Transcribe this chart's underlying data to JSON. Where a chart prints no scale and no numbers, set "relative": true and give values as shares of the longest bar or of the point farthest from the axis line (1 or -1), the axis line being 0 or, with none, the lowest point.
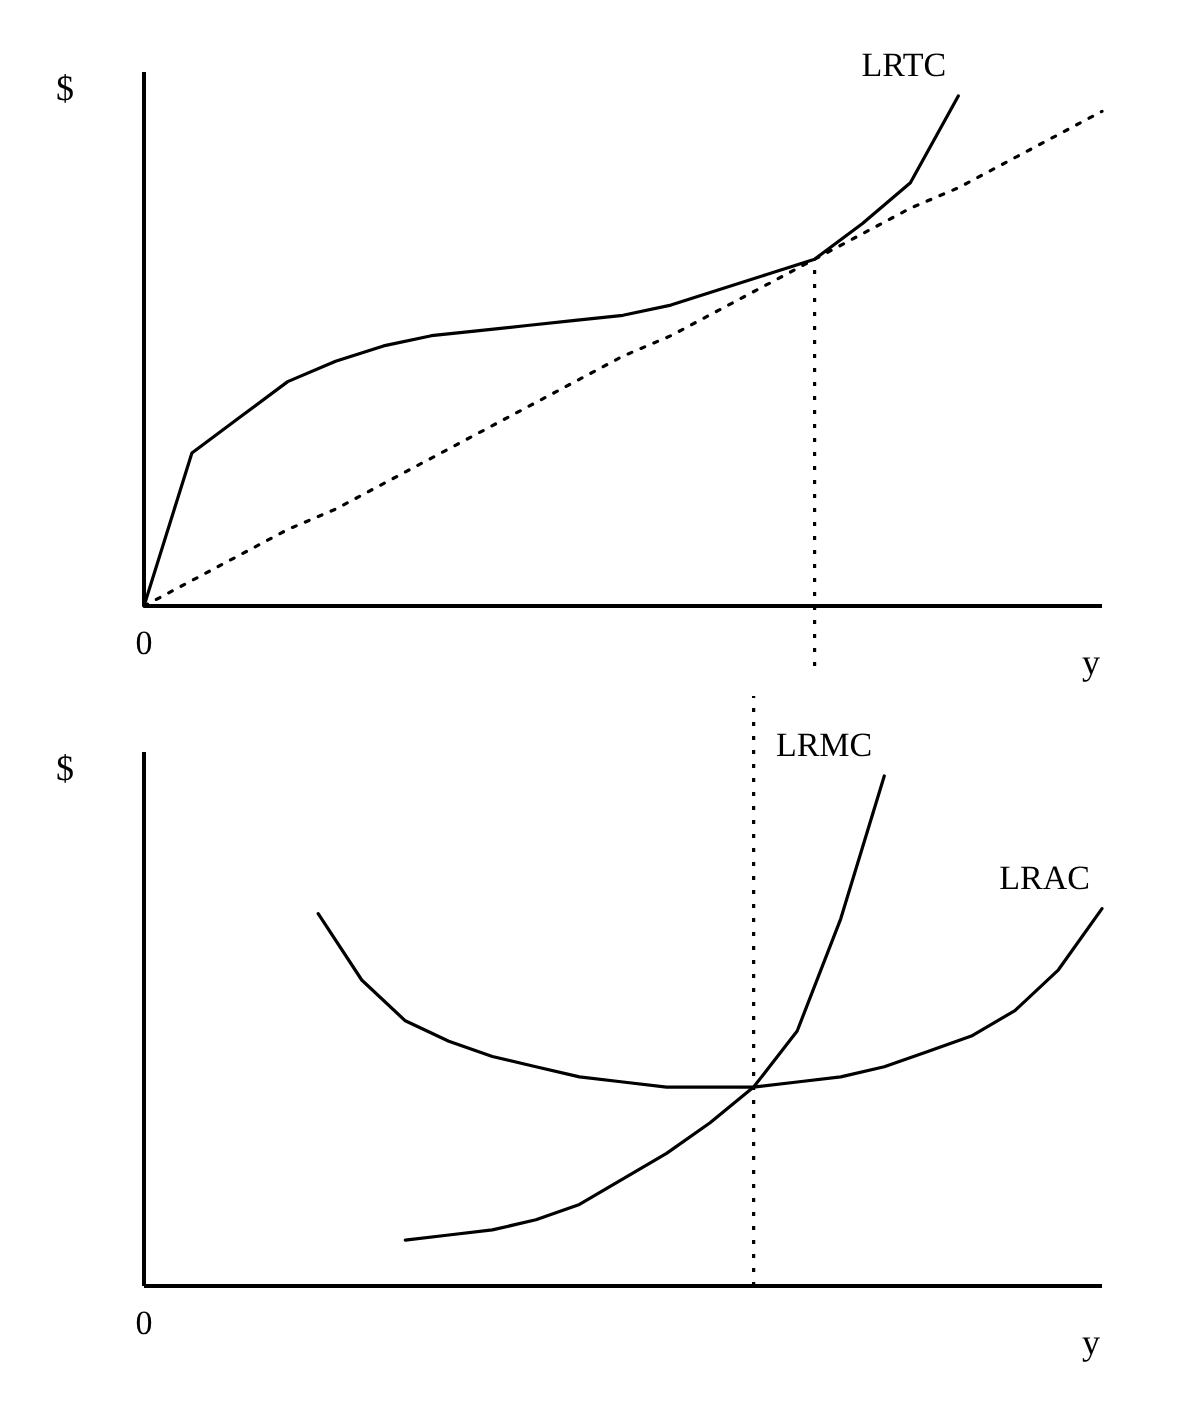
{
  "chart_data": [
    {
      "type": "line",
      "relative": true,
      "ylabel": "$",
      "xlabel": "y",
      "marker": "none",
      "annotations": [
        "0"
      ],
      "categories": [
        null,
        null,
        null,
        null,
        null,
        null,
        null,
        null,
        null,
        null,
        null,
        null,
        null,
        null,
        null,
        null,
        null,
        null,
        null,
        null,
        null
      ],
      "series": [
        {
          "name": "LRTC",
          "color": "#000000",
          "line_style": "solid",
          "values": [
            0,
            0.3,
            0.37,
            0.44,
            0.48,
            0.51,
            0.53,
            0.54,
            0.55,
            0.56,
            0.57,
            0.59,
            0.62,
            0.65,
            0.68,
            0.75,
            0.83,
            1,
            null,
            null,
            null
          ]
        },
        {
          "color": "#000000",
          "line_style": "dotted",
          "values": [
            0,
            0.05,
            0.1,
            0.15,
            0.19,
            0.24,
            0.29,
            0.34,
            0.39,
            0.44,
            0.49,
            0.53,
            0.58,
            0.63,
            0.68,
            0.73,
            0.78,
            0.82,
            0.87,
            0.92,
            0.97
          ]
        }
      ]
    },
    {
      "type": "line",
      "relative": true,
      "ylabel": "$",
      "xlabel": "y",
      "marker": "none",
      "annotations": [
        "0"
      ],
      "categories": [
        null,
        null,
        null,
        null,
        null,
        null,
        null,
        null,
        null,
        null,
        null,
        null,
        null,
        null,
        null,
        null,
        null,
        null,
        null,
        null,
        null,
        null,
        null
      ],
      "series": [
        {
          "name": "LRMC",
          "color": "#000000",
          "line_style": "solid",
          "values": [
            null,
            null,
            null,
            null,
            null,
            null,
            0.09,
            0.1,
            0.11,
            0.13,
            0.16,
            0.21,
            0.26,
            0.32,
            0.39,
            0.5,
            0.72,
            1,
            null,
            null,
            null,
            null,
            null
          ]
        },
        {
          "name": "LRAC",
          "color": "#000000",
          "line_style": "solid",
          "values": [
            null,
            null,
            null,
            null,
            0.73,
            0.6,
            0.52,
            0.48,
            0.45,
            0.43,
            0.41,
            0.4,
            0.39,
            0.39,
            0.39,
            0.4,
            0.41,
            0.43,
            0.46,
            0.49,
            0.54,
            0.62,
            0.74
          ]
        }
      ]
    }
  ]
}
